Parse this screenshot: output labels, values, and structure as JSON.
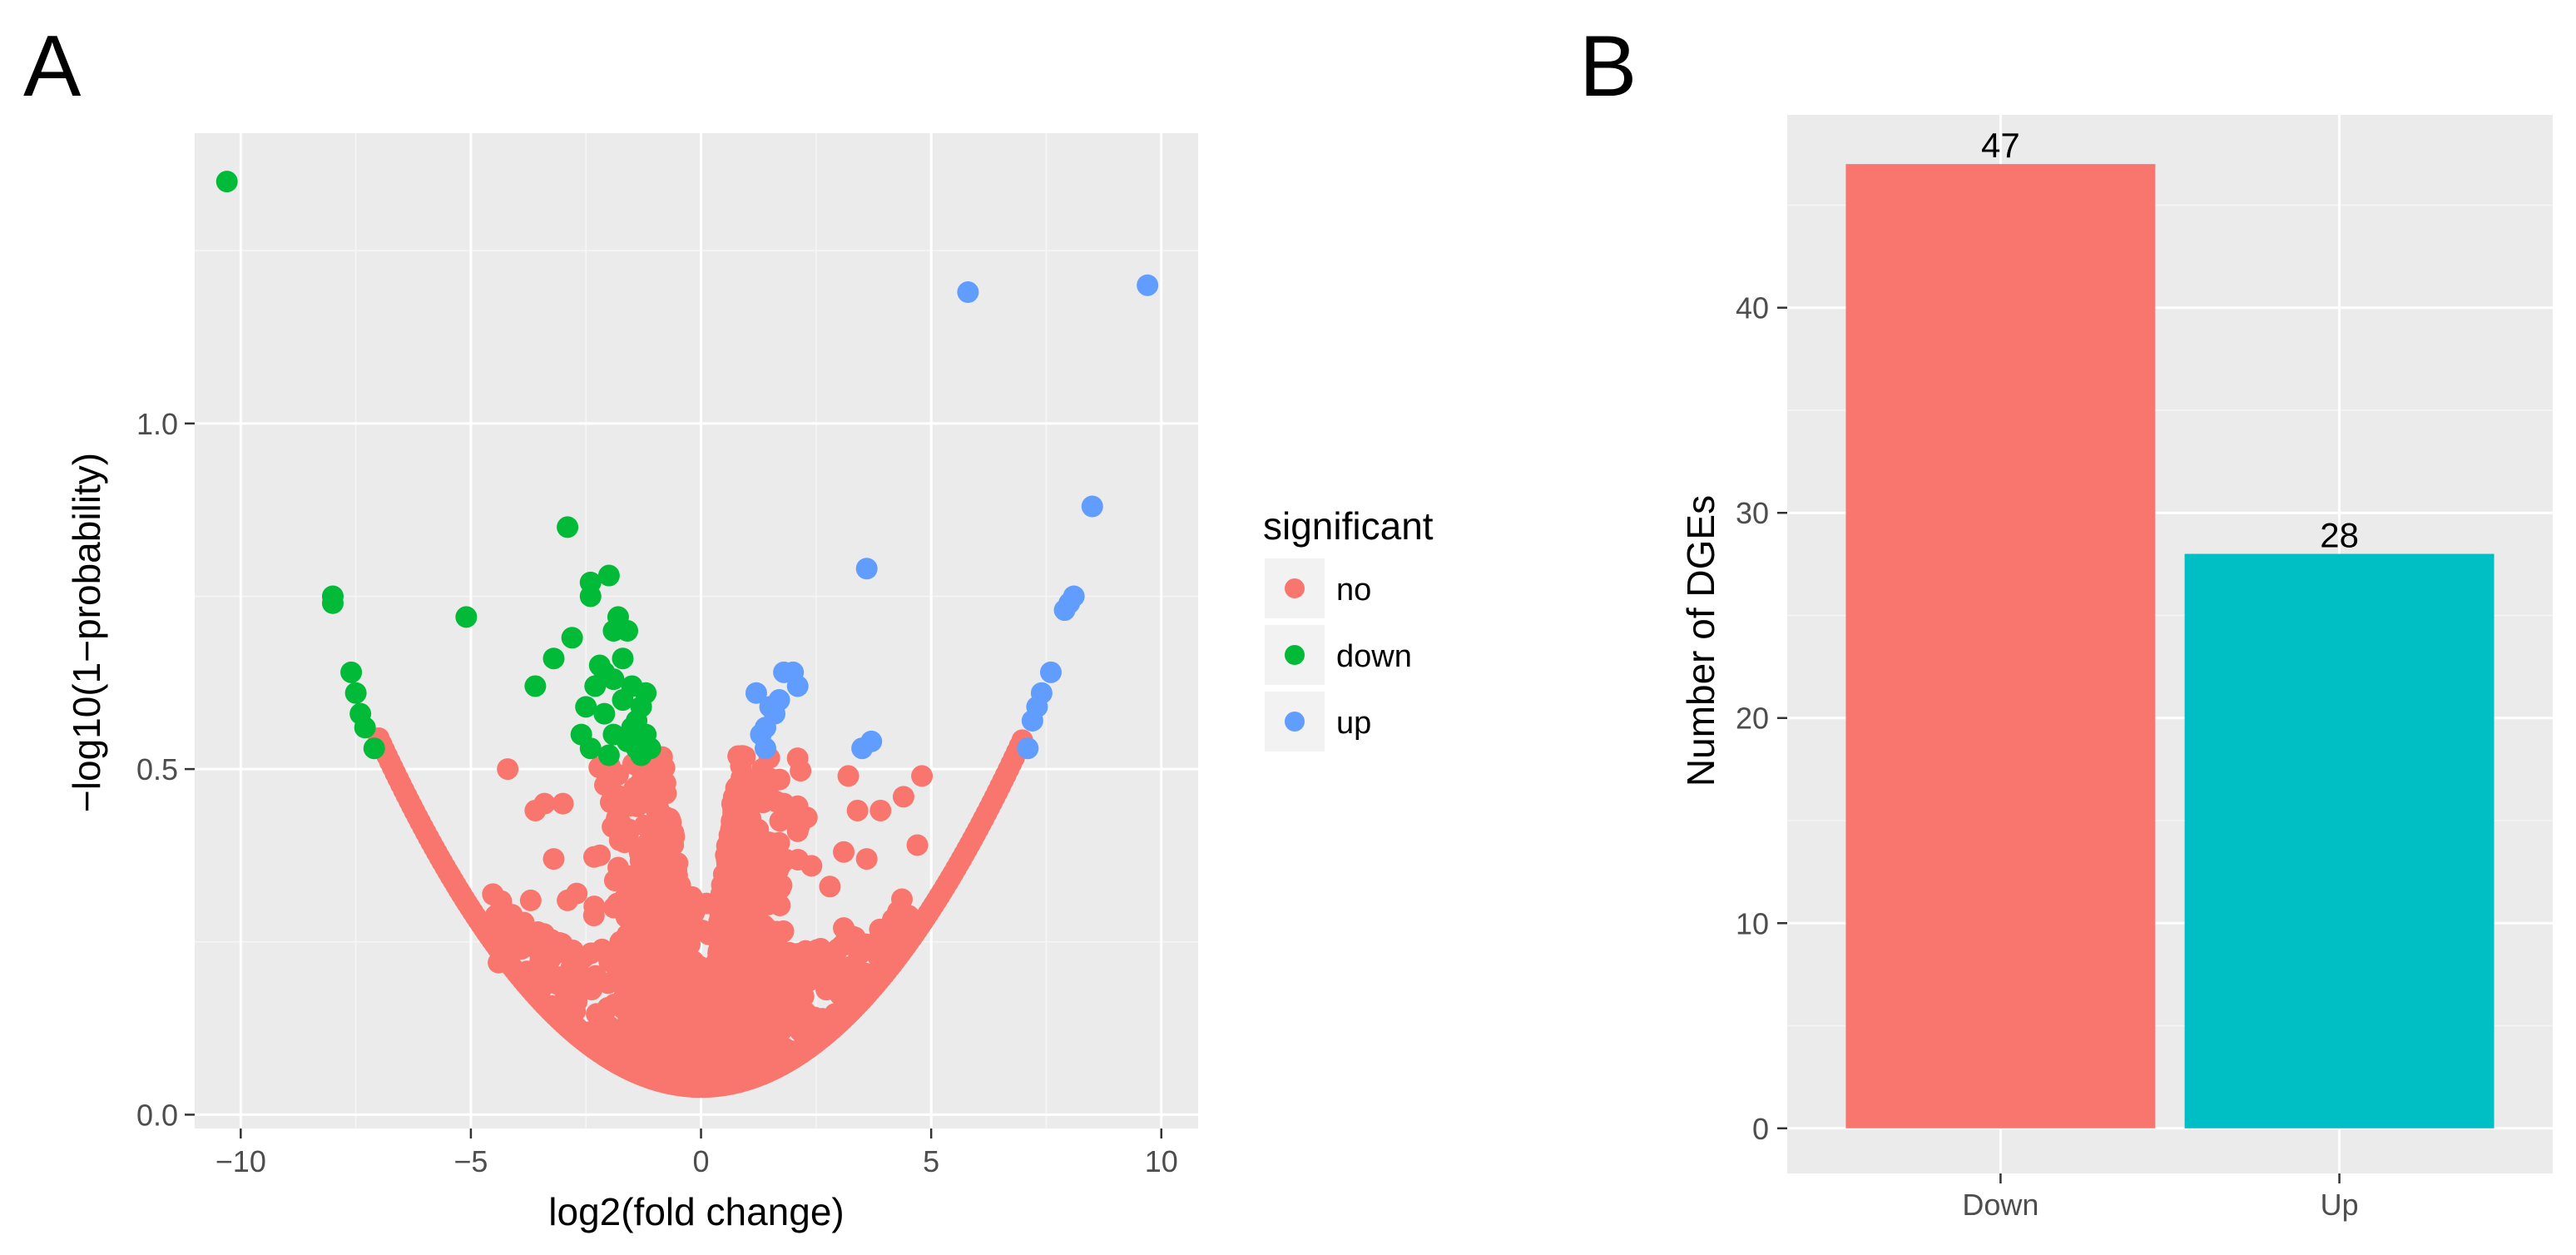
{
  "panels": {
    "a_label": "A",
    "b_label": "B"
  },
  "colors": {
    "no": "#F8766D",
    "down": "#00BA38",
    "up": "#619CFF",
    "bar_down": "#F8766D",
    "bar_up": "#00BFC4",
    "panel_bg": "#EBEBEB"
  },
  "legend": {
    "title": "significant",
    "entries": [
      {
        "key": "no",
        "label": "no"
      },
      {
        "key": "down",
        "label": "down"
      },
      {
        "key": "up",
        "label": "up"
      }
    ]
  },
  "chart_data": [
    {
      "type": "scatter",
      "panel": "A",
      "xlabel": "log2(fold change)",
      "ylabel": "−log10(1−probability)",
      "xlim": [
        -11,
        10.8
      ],
      "ylim": [
        -0.02,
        1.42
      ],
      "xticks": [
        -10,
        -5,
        0,
        5,
        10
      ],
      "xtick_labels": [
        "−10",
        "−5",
        "0",
        "5",
        "10"
      ],
      "yticks": [
        0.0,
        0.5,
        1.0
      ],
      "ytick_labels": [
        "0.0",
        "0.5",
        "1.0"
      ],
      "grid": true,
      "legend_position": "right",
      "background_no_points": {
        "description_key": "no",
        "envelope": "y = 0.04 + 0.0103 * x^2 for |x| up to 7",
        "x_range": [
          -7,
          7
        ]
      },
      "series": [
        {
          "name": "no",
          "points": [
            [
              -4.2,
              0.5
            ],
            [
              -3.6,
              0.44
            ],
            [
              -3.4,
              0.45
            ],
            [
              -3.0,
              0.45
            ],
            [
              -2.9,
              0.31
            ],
            [
              -3.2,
              0.37
            ],
            [
              -2.7,
              0.32
            ],
            [
              -4.4,
              0.22
            ],
            [
              -3.9,
              0.24
            ],
            [
              -3.7,
              0.31
            ],
            [
              -3.5,
              0.22
            ],
            [
              -3.1,
              0.24
            ],
            [
              4.8,
              0.49
            ],
            [
              3.2,
              0.49
            ],
            [
              3.9,
              0.44
            ],
            [
              4.4,
              0.46
            ],
            [
              3.4,
              0.44
            ],
            [
              3.6,
              0.37
            ],
            [
              4.7,
              0.39
            ],
            [
              3.1,
              0.38
            ],
            [
              2.4,
              0.36
            ],
            [
              2.8,
              0.33
            ],
            [
              3.1,
              0.27
            ],
            [
              2.6,
              0.24
            ],
            [
              2.3,
              0.43
            ],
            [
              2.1,
              0.41
            ],
            [
              1.8,
              0.45
            ],
            [
              2.4,
              0.21
            ]
          ]
        },
        {
          "name": "down",
          "points": [
            [
              -10.3,
              1.35
            ],
            [
              -8.0,
              0.75
            ],
            [
              -8.0,
              0.74
            ],
            [
              -7.6,
              0.64
            ],
            [
              -7.5,
              0.61
            ],
            [
              -7.4,
              0.58
            ],
            [
              -7.3,
              0.56
            ],
            [
              -7.1,
              0.53
            ],
            [
              -5.1,
              0.72
            ],
            [
              -2.9,
              0.85
            ],
            [
              -3.6,
              0.62
            ],
            [
              -3.2,
              0.66
            ],
            [
              -2.8,
              0.69
            ],
            [
              -2.4,
              0.77
            ],
            [
              -2.4,
              0.75
            ],
            [
              -2.5,
              0.59
            ],
            [
              -2.2,
              0.65
            ],
            [
              -2.1,
              0.64
            ],
            [
              -2.0,
              0.78
            ],
            [
              -1.9,
              0.7
            ],
            [
              -1.8,
              0.72
            ],
            [
              -1.7,
              0.66
            ],
            [
              -1.6,
              0.7
            ],
            [
              -1.5,
              0.62
            ],
            [
              -1.4,
              0.57
            ],
            [
              -1.3,
              0.59
            ],
            [
              -1.2,
              0.55
            ],
            [
              -1.1,
              0.53
            ],
            [
              -2.6,
              0.55
            ],
            [
              -2.4,
              0.53
            ],
            [
              -2.1,
              0.58
            ],
            [
              -1.9,
              0.55
            ],
            [
              -1.7,
              0.6
            ],
            [
              -1.6,
              0.54
            ],
            [
              -1.4,
              0.53
            ],
            [
              -2.3,
              0.62
            ],
            [
              -1.9,
              0.63
            ],
            [
              -1.5,
              0.56
            ],
            [
              -2.0,
              0.52
            ],
            [
              -1.3,
              0.52
            ],
            [
              -1.2,
              0.61
            ]
          ]
        },
        {
          "name": "up",
          "points": [
            [
              9.7,
              1.2
            ],
            [
              5.8,
              1.19
            ],
            [
              8.5,
              0.88
            ],
            [
              3.6,
              0.79
            ],
            [
              8.1,
              0.75
            ],
            [
              8.0,
              0.74
            ],
            [
              7.9,
              0.73
            ],
            [
              7.6,
              0.64
            ],
            [
              7.4,
              0.61
            ],
            [
              7.3,
              0.59
            ],
            [
              7.2,
              0.57
            ],
            [
              7.1,
              0.53
            ],
            [
              1.2,
              0.61
            ],
            [
              1.5,
              0.59
            ],
            [
              1.7,
              0.6
            ],
            [
              1.8,
              0.64
            ],
            [
              2.0,
              0.64
            ],
            [
              2.1,
              0.62
            ],
            [
              1.6,
              0.58
            ],
            [
              1.4,
              0.56
            ],
            [
              1.3,
              0.55
            ],
            [
              1.4,
              0.53
            ],
            [
              3.5,
              0.53
            ],
            [
              3.7,
              0.54
            ]
          ]
        }
      ]
    },
    {
      "type": "bar",
      "panel": "B",
      "categories": [
        "Down",
        "Up"
      ],
      "values": [
        47,
        28
      ],
      "value_labels": [
        "47",
        "28"
      ],
      "xlabel": "",
      "ylabel": "Number of DGEs",
      "ylim": [
        -2.2,
        49.4
      ],
      "yticks": [
        0,
        10,
        20,
        30,
        40
      ],
      "ytick_labels": [
        "0",
        "10",
        "20",
        "30",
        "40"
      ],
      "grid": true
    }
  ]
}
